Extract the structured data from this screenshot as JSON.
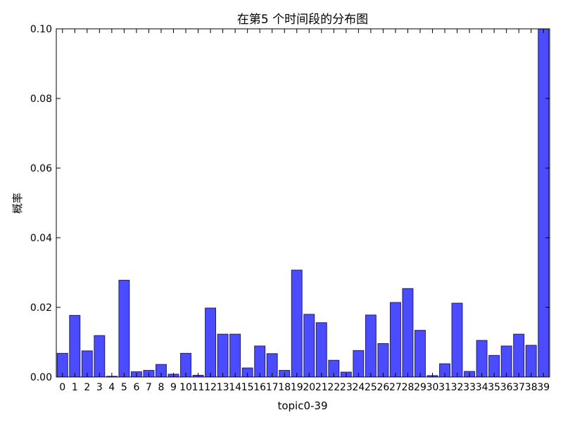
{
  "chart_data": {
    "type": "bar",
    "title": "在第5 个时间段的分布图",
    "xlabel": "topic0-39",
    "ylabel": "概率",
    "ylim": [
      0,
      0.1
    ],
    "yticks": [
      "0.00",
      "0.02",
      "0.04",
      "0.06",
      "0.08",
      "0.10"
    ],
    "categories": [
      "0",
      "1",
      "2",
      "3",
      "4",
      "5",
      "6",
      "7",
      "8",
      "9",
      "10",
      "11",
      "12",
      "13",
      "14",
      "15",
      "16",
      "17",
      "18",
      "19",
      "20",
      "21",
      "22",
      "23",
      "24",
      "25",
      "26",
      "27",
      "28",
      "29",
      "30",
      "31",
      "32",
      "33",
      "34",
      "35",
      "36",
      "37",
      "38",
      "39"
    ],
    "values": [
      0.0068,
      0.0177,
      0.0075,
      0.0119,
      0.0002,
      0.0278,
      0.0015,
      0.0019,
      0.0036,
      0.0008,
      0.0068,
      0.0005,
      0.0198,
      0.0123,
      0.0123,
      0.0026,
      0.0089,
      0.0067,
      0.0019,
      0.0307,
      0.018,
      0.0156,
      0.0048,
      0.0014,
      0.0076,
      0.0178,
      0.0096,
      0.0214,
      0.0254,
      0.0134,
      0.0004,
      0.0038,
      0.0212,
      0.0016,
      0.0105,
      0.0062,
      0.0089,
      0.0123,
      0.0091,
      0.1
    ],
    "bar_color": "#4b4bff",
    "bar_edge_color": "#1f1f66",
    "grid": false
  }
}
